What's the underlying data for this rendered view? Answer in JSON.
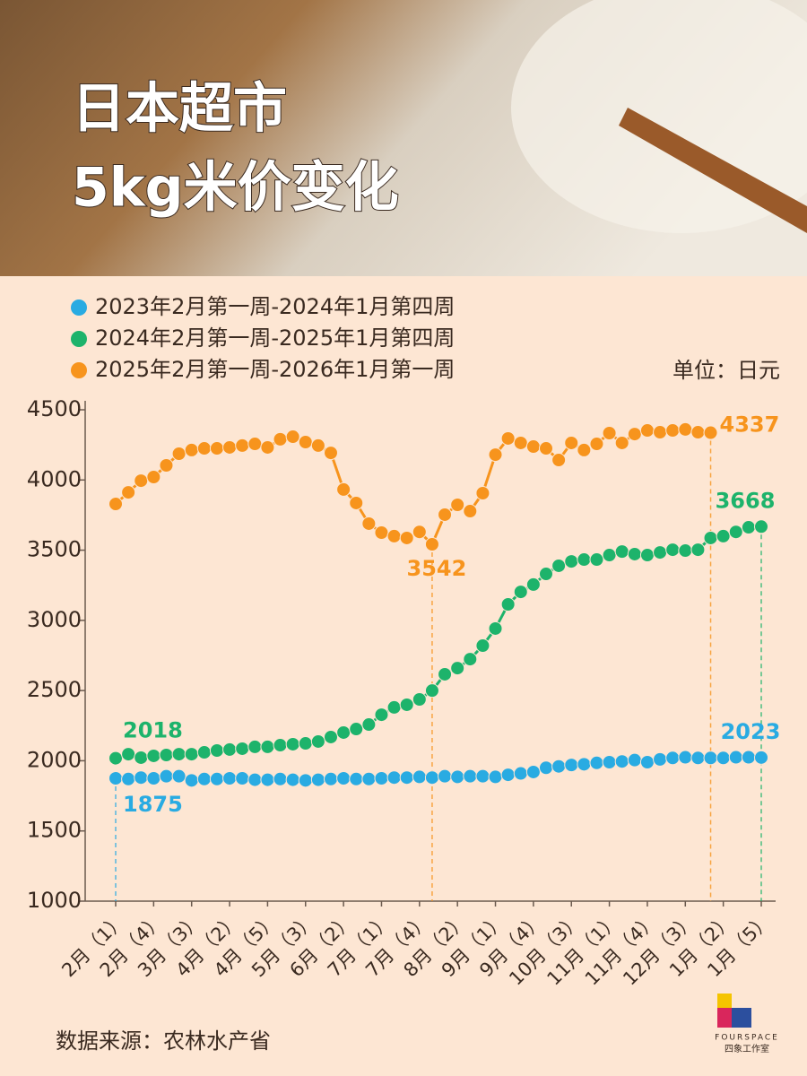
{
  "chart_data": {
    "type": "line",
    "title": [
      "日本超市",
      "5kg米价变化"
    ],
    "unit": "单位：日元",
    "source": "数据来源：农林水产省",
    "logo": {
      "name": "FOURSPACE",
      "subtitle": "四象工作室"
    },
    "categories": [
      "2月（1）",
      null,
      null,
      "2月（4）",
      null,
      null,
      "3月（3）",
      null,
      null,
      "4月（2）",
      null,
      null,
      "4月（5）",
      null,
      null,
      "5月（3）",
      null,
      null,
      "6月（2）",
      null,
      null,
      "7月（1）",
      null,
      null,
      "7月（4）",
      null,
      null,
      "8月（2）",
      null,
      null,
      "9月（1）",
      null,
      null,
      "9月（4）",
      null,
      null,
      "10月（3）",
      null,
      null,
      "11月（1）",
      null,
      null,
      "11月（4）",
      null,
      null,
      "12月（3）",
      null,
      null,
      "1月（2）",
      null,
      null,
      "1月（5）"
    ],
    "series": [
      {
        "name": "2023年2月第一周-2024年1月第四周",
        "color": "#29abe2",
        "values": [
          1875,
          1870,
          1880,
          1875,
          1890,
          1890,
          1860,
          1870,
          1870,
          1875,
          1875,
          1865,
          1865,
          1870,
          1865,
          1860,
          1865,
          1870,
          1875,
          1870,
          1870,
          1875,
          1880,
          1880,
          1885,
          1880,
          1890,
          1885,
          1890,
          1890,
          1885,
          1900,
          1910,
          1920,
          1950,
          1960,
          1970,
          1975,
          1985,
          1990,
          1995,
          2005,
          1990,
          2010,
          2020,
          2025,
          2020,
          2020,
          2020,
          2025,
          2025,
          2023
        ]
      },
      {
        "name": "2024年2月第一周-2025年1月第四周",
        "color": "#1db36b",
        "values": [
          2018,
          2047,
          2022,
          2035,
          2041,
          2047,
          2047,
          2060,
          2073,
          2080,
          2086,
          2099,
          2099,
          2111,
          2118,
          2124,
          2137,
          2169,
          2201,
          2226,
          2258,
          2328,
          2380,
          2399,
          2437,
          2500,
          2616,
          2660,
          2724,
          2820,
          2942,
          3114,
          3203,
          3255,
          3331,
          3389,
          3420,
          3433,
          3433,
          3465,
          3490,
          3472,
          3465,
          3484,
          3503,
          3497,
          3503,
          3587,
          3600,
          3630,
          3663,
          3668
        ]
      },
      {
        "name": "2025年2月第一周-2026年1月第一周",
        "color": "#f7941d",
        "values": [
          3829,
          3912,
          3995,
          4021,
          4104,
          4187,
          4213,
          4225,
          4225,
          4232,
          4245,
          4257,
          4232,
          4290,
          4308,
          4270,
          4245,
          4193,
          3932,
          3836,
          3689,
          3625,
          3600,
          3587,
          3630,
          3542,
          3753,
          3823,
          3778,
          3906,
          4180,
          4296,
          4264,
          4238,
          4225,
          4142,
          4264,
          4213,
          4257,
          4334,
          4264,
          4327,
          4353,
          4340,
          4353,
          4360,
          4340,
          4337,
          null,
          null,
          null,
          null
        ]
      }
    ],
    "ylim": [
      1000,
      4500
    ],
    "yticks": [
      1000,
      1500,
      2000,
      2500,
      3000,
      3500,
      4000,
      4500
    ]
  }
}
